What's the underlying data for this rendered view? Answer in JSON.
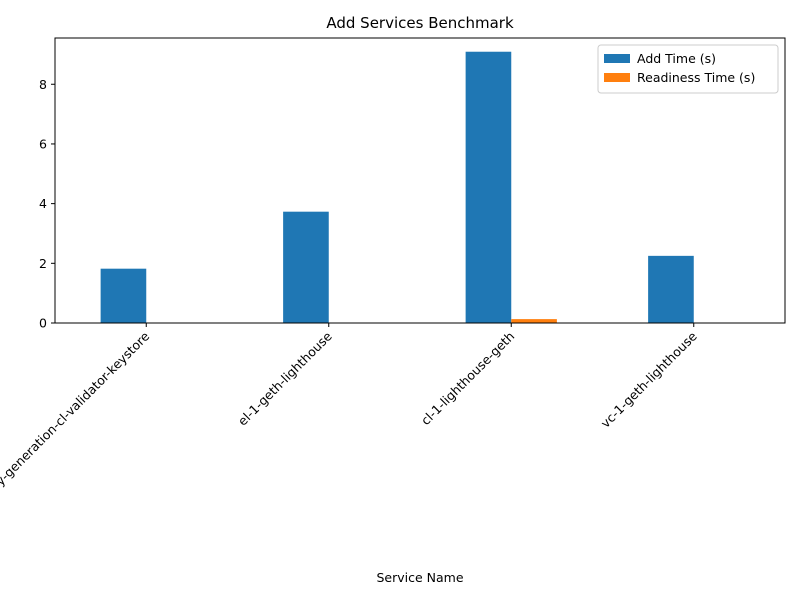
{
  "chart_data": {
    "type": "bar",
    "title": "Add Services Benchmark",
    "xlabel": "Service Name",
    "ylabel": "",
    "categories": [
      "validator-key-generation-cl-validator-keystore",
      "el-1-geth-lighthouse",
      "cl-1-lighthouse-geth",
      "vc-1-geth-lighthouse"
    ],
    "series": [
      {
        "name": "Add Time (s)",
        "color": "#1f77b4",
        "values": [
          1.82,
          3.73,
          9.09,
          2.25
        ]
      },
      {
        "name": "Readiness Time (s)",
        "color": "#ff7f0e",
        "values": [
          0.0,
          0.0,
          0.13,
          0.0
        ]
      }
    ],
    "ylim": [
      0,
      9.55
    ],
    "yticks": [
      0,
      2,
      4,
      6,
      8
    ],
    "grid": false,
    "legend_position": "top-right",
    "xtick_rotation": 45
  }
}
